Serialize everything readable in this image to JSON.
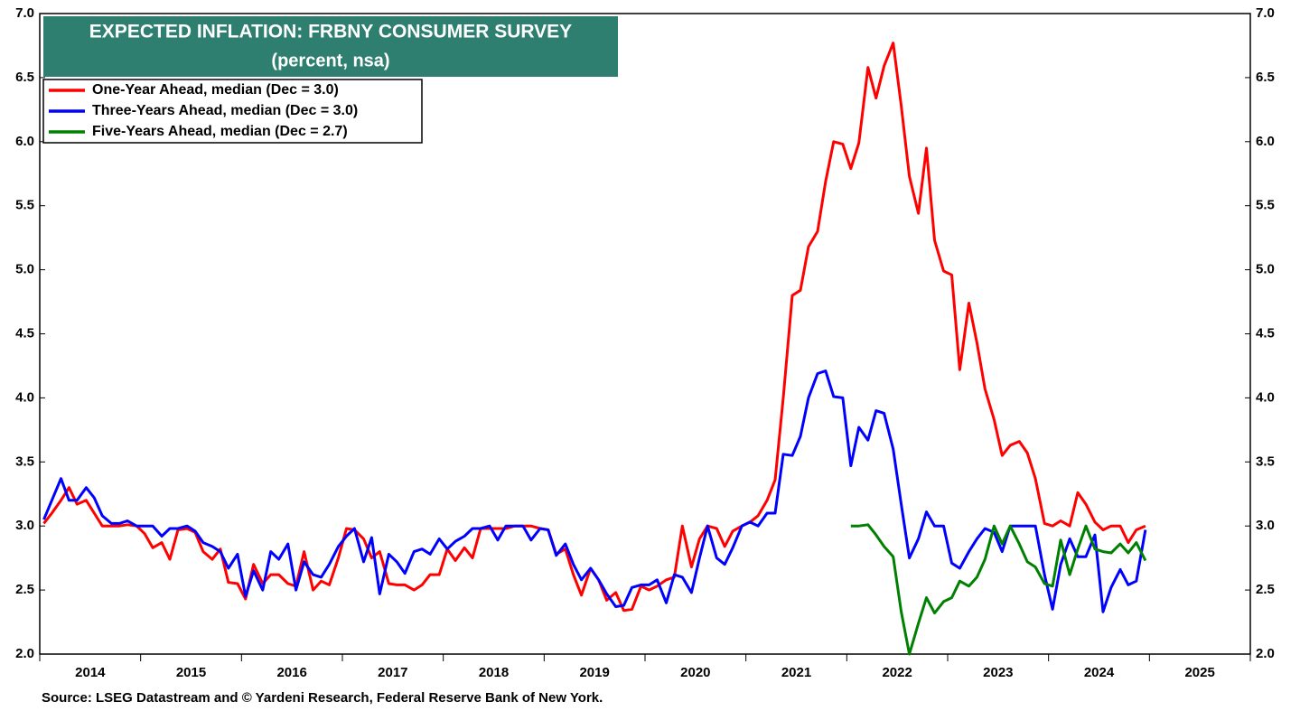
{
  "chart_data": {
    "type": "line",
    "title": "EXPECTED INFLATION: FRBNY CONSUMER SURVEY",
    "subtitle": "(percent, nsa)",
    "source": "Source: LSEG Datastream and © Yardeni Research, Federal Reserve Bank of New York.",
    "legend_position": "upper-left",
    "xlim": [
      2014,
      2026
    ],
    "xticks": [
      2014,
      2015,
      2016,
      2017,
      2018,
      2019,
      2020,
      2021,
      2022,
      2023,
      2024,
      2025,
      2026
    ],
    "year_labels": [
      2014,
      2015,
      2016,
      2017,
      2018,
      2019,
      2020,
      2021,
      2022,
      2023,
      2024,
      2025
    ],
    "ylim": [
      2,
      7
    ],
    "yticks": [
      {
        "value": 2,
        "label": "2.0"
      },
      {
        "value": 2.5,
        "label": "2.5"
      },
      {
        "value": 3,
        "label": "3.0"
      },
      {
        "value": 3.5,
        "label": "3.5"
      },
      {
        "value": 4,
        "label": "4.0"
      },
      {
        "value": 4.5,
        "label": "4.5"
      },
      {
        "value": 5,
        "label": "5.0"
      },
      {
        "value": 5.5,
        "label": "5.5"
      },
      {
        "value": 6,
        "label": "6.0"
      },
      {
        "value": 6.5,
        "label": "6.5"
      },
      {
        "value": 7,
        "label": "7.0"
      }
    ],
    "x": [
      2014.04,
      2014.12,
      2014.21,
      2014.29,
      2014.37,
      2014.46,
      2014.54,
      2014.62,
      2014.71,
      2014.79,
      2014.87,
      2014.96,
      2015.04,
      2015.12,
      2015.21,
      2015.29,
      2015.37,
      2015.46,
      2015.54,
      2015.62,
      2015.71,
      2015.79,
      2015.87,
      2015.96,
      2016.04,
      2016.12,
      2016.21,
      2016.29,
      2016.37,
      2016.46,
      2016.54,
      2016.62,
      2016.71,
      2016.79,
      2016.87,
      2016.96,
      2017.04,
      2017.12,
      2017.21,
      2017.29,
      2017.37,
      2017.46,
      2017.54,
      2017.62,
      2017.71,
      2017.79,
      2017.87,
      2017.96,
      2018.04,
      2018.12,
      2018.21,
      2018.29,
      2018.37,
      2018.46,
      2018.54,
      2018.62,
      2018.71,
      2018.79,
      2018.87,
      2018.96,
      2019.04,
      2019.12,
      2019.21,
      2019.29,
      2019.37,
      2019.46,
      2019.54,
      2019.62,
      2019.71,
      2019.79,
      2019.87,
      2019.96,
      2020.04,
      2020.12,
      2020.21,
      2020.29,
      2020.37,
      2020.46,
      2020.54,
      2020.62,
      2020.71,
      2020.79,
      2020.87,
      2020.96,
      2021.04,
      2021.12,
      2021.21,
      2021.29,
      2021.37,
      2021.46,
      2021.54,
      2021.62,
      2021.71,
      2021.79,
      2021.87,
      2021.96,
      2022.04,
      2022.12,
      2022.21,
      2022.29,
      2022.37,
      2022.46,
      2022.54,
      2022.62,
      2022.71,
      2022.79,
      2022.87,
      2022.96,
      2023.04,
      2023.12,
      2023.21,
      2023.29,
      2023.37,
      2023.46,
      2023.54,
      2023.62,
      2023.71,
      2023.79,
      2023.87,
      2023.96,
      2024.04,
      2024.12,
      2024.21,
      2024.29,
      2024.37,
      2024.46,
      2024.54,
      2024.62,
      2024.71,
      2024.79,
      2024.87,
      2024.96
    ],
    "series": [
      {
        "name": "One-Year Ahead, median  (Dec = 3.0)",
        "color": "#ff0000",
        "values": [
          3.02,
          3.1,
          3.2,
          3.3,
          3.17,
          3.2,
          3.1,
          3.0,
          3.0,
          3.0,
          3.01,
          3.0,
          2.94,
          2.83,
          2.87,
          2.74,
          2.97,
          2.98,
          2.95,
          2.8,
          2.74,
          2.82,
          2.56,
          2.55,
          2.43,
          2.7,
          2.55,
          2.62,
          2.62,
          2.55,
          2.53,
          2.8,
          2.5,
          2.57,
          2.54,
          2.75,
          2.98,
          2.97,
          2.9,
          2.75,
          2.8,
          2.55,
          2.54,
          2.54,
          2.5,
          2.54,
          2.62,
          2.62,
          2.82,
          2.73,
          2.83,
          2.75,
          2.98,
          2.98,
          2.98,
          2.98,
          3.0,
          3.0,
          3.0,
          2.98,
          2.97,
          2.78,
          2.82,
          2.62,
          2.46,
          2.67,
          2.58,
          2.42,
          2.48,
          2.34,
          2.35,
          2.53,
          2.5,
          2.53,
          2.58,
          2.6,
          3.0,
          2.68,
          2.9,
          3.0,
          2.98,
          2.84,
          2.96,
          3.0,
          3.03,
          3.08,
          3.2,
          3.36,
          4.0,
          4.8,
          4.84,
          5.18,
          5.3,
          5.69,
          6.0,
          5.98,
          5.79,
          5.99,
          6.58,
          6.34,
          6.59,
          6.77,
          6.28,
          5.73,
          5.44,
          5.95,
          5.23,
          4.99,
          4.96,
          4.22,
          4.74,
          4.43,
          4.07,
          3.83,
          3.55,
          3.63,
          3.66,
          3.57,
          3.37,
          3.02,
          3.0,
          3.04,
          3.0,
          3.26,
          3.17,
          3.03,
          2.97,
          3.0,
          3.0,
          2.87,
          2.97,
          3.0
        ]
      },
      {
        "name": "Three-Years Ahead, median  (Dec = 3.0)",
        "color": "#0000ff",
        "values": [
          3.05,
          3.2,
          3.37,
          3.2,
          3.2,
          3.3,
          3.22,
          3.08,
          3.02,
          3.02,
          3.04,
          3.0,
          3.0,
          3.0,
          2.92,
          2.98,
          2.98,
          3.0,
          2.96,
          2.87,
          2.84,
          2.8,
          2.67,
          2.78,
          2.45,
          2.65,
          2.5,
          2.8,
          2.74,
          2.86,
          2.5,
          2.72,
          2.62,
          2.6,
          2.7,
          2.84,
          2.92,
          2.98,
          2.72,
          2.91,
          2.47,
          2.78,
          2.72,
          2.63,
          2.8,
          2.82,
          2.78,
          2.9,
          2.82,
          2.88,
          2.92,
          2.98,
          2.98,
          3.0,
          2.89,
          3.0,
          3.0,
          3.0,
          2.89,
          2.98,
          2.97,
          2.77,
          2.86,
          2.7,
          2.58,
          2.67,
          2.58,
          2.47,
          2.37,
          2.38,
          2.52,
          2.54,
          2.54,
          2.58,
          2.4,
          2.62,
          2.6,
          2.48,
          2.75,
          3.0,
          2.75,
          2.7,
          2.83,
          3.0,
          3.03,
          3.0,
          3.1,
          3.1,
          3.56,
          3.55,
          3.7,
          4.0,
          4.19,
          4.21,
          4.01,
          4.0,
          3.47,
          3.77,
          3.67,
          3.9,
          3.88,
          3.6,
          3.17,
          2.75,
          2.9,
          3.11,
          3.0,
          3.0,
          2.71,
          2.67,
          2.8,
          2.9,
          2.98,
          2.95,
          2.8,
          3.0,
          3.0,
          3.0,
          3.0,
          2.62,
          2.35,
          2.7,
          2.9,
          2.76,
          2.76,
          2.93,
          2.33,
          2.52,
          2.66,
          2.54,
          2.57,
          2.97
        ]
      },
      {
        "name": "Five-Years Ahead, median (Dec = 2.7)",
        "color": "#008000",
        "values": [
          null,
          null,
          null,
          null,
          null,
          null,
          null,
          null,
          null,
          null,
          null,
          null,
          null,
          null,
          null,
          null,
          null,
          null,
          null,
          null,
          null,
          null,
          null,
          null,
          null,
          null,
          null,
          null,
          null,
          null,
          null,
          null,
          null,
          null,
          null,
          null,
          null,
          null,
          null,
          null,
          null,
          null,
          null,
          null,
          null,
          null,
          null,
          null,
          null,
          null,
          null,
          null,
          null,
          null,
          null,
          null,
          null,
          null,
          null,
          null,
          null,
          null,
          null,
          null,
          null,
          null,
          null,
          null,
          null,
          null,
          null,
          null,
          null,
          null,
          null,
          null,
          null,
          null,
          null,
          null,
          null,
          null,
          null,
          null,
          null,
          null,
          null,
          null,
          null,
          null,
          null,
          null,
          null,
          null,
          null,
          null,
          3.0,
          3.0,
          3.01,
          2.93,
          2.84,
          2.76,
          2.33,
          2.0,
          2.24,
          2.44,
          2.32,
          2.41,
          2.44,
          2.57,
          2.53,
          2.6,
          2.74,
          3.0,
          2.86,
          3.0,
          2.86,
          2.72,
          2.68,
          2.55,
          2.53,
          2.89,
          2.62,
          2.82,
          3.0,
          2.82,
          2.8,
          2.79,
          2.86,
          2.79,
          2.87,
          2.73
        ]
      }
    ]
  }
}
